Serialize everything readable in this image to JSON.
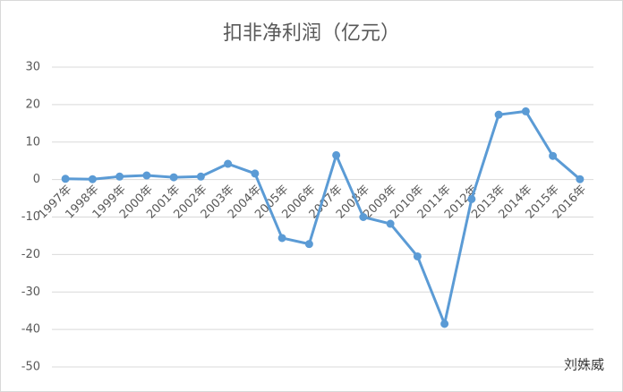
{
  "chart_data": {
    "type": "line",
    "title": "扣非净利润（亿元）",
    "categories": [
      "1997年",
      "1998年",
      "1999年",
      "2000年",
      "2001年",
      "2002年",
      "2003年",
      "2004年",
      "2005年",
      "2006年",
      "2007年",
      "2008年",
      "2009年",
      "2010年",
      "2011年",
      "2012年",
      "2013年",
      "2014年",
      "2015年",
      "2016年"
    ],
    "series": [
      {
        "name": "扣非净利润",
        "color": "#5b9bd5",
        "values": [
          0.2,
          0.1,
          0.8,
          1.1,
          0.6,
          0.8,
          4.2,
          1.6,
          -15.6,
          -17.2,
          6.5,
          -10,
          -11.8,
          -20.5,
          -38.5,
          -5.2,
          17.3,
          18.2,
          6.3,
          0.1
        ]
      }
    ],
    "ylim": [
      -50,
      30
    ],
    "yticks": [
      -50,
      -40,
      -30,
      -20,
      -10,
      0,
      10,
      20,
      30
    ],
    "grid": true,
    "watermark": "刘姝威"
  }
}
